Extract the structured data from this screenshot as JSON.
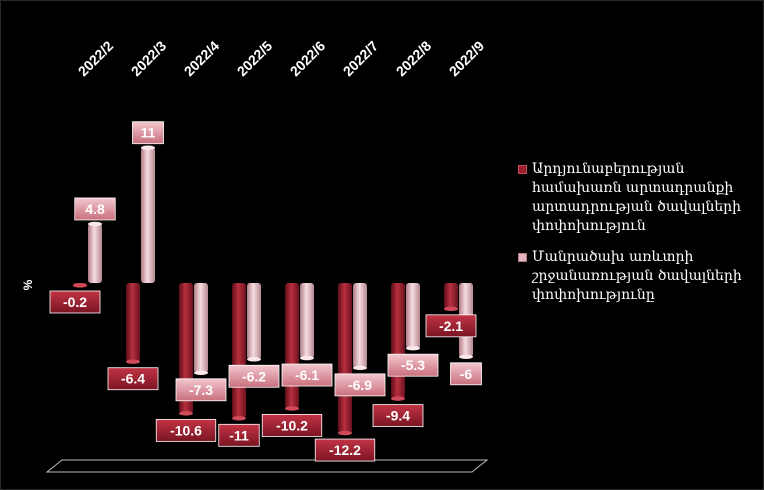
{
  "chart_data": {
    "type": "bar",
    "categories": [
      "2022/2",
      "2022/3",
      "2022/4",
      "2022/5",
      "2022/6",
      "2022/7",
      "2022/8",
      "2022/9"
    ],
    "series": [
      {
        "name": "Արդյունաբերության համախառն արտադրանքի արտադրության ծավալների փոփոխություն",
        "values": [
          -0.2,
          -6.4,
          -10.6,
          -11,
          -10.2,
          -12.2,
          -9.4,
          -2.1
        ],
        "color": "#9b1f2e"
      },
      {
        "name": "Մանրածախ առևտրի շրջանառության  ծավալների փոփոխությունը",
        "values": [
          4.8,
          11,
          -7.3,
          -6.2,
          -6.1,
          -6.9,
          -5.3,
          -6
        ],
        "color": "#e3b5bd"
      }
    ],
    "ylabel": "%",
    "legend_position": "right",
    "grid": false
  }
}
